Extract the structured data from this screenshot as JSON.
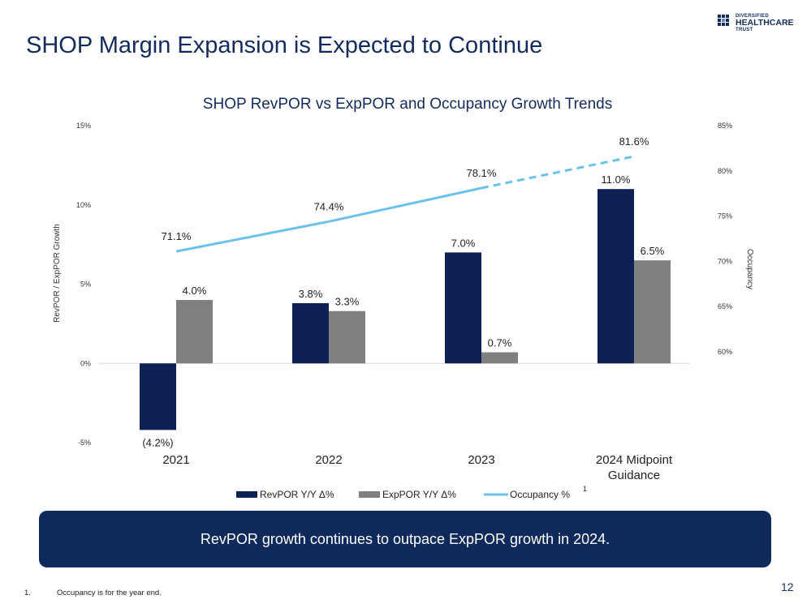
{
  "slide": {
    "title": "SHOP Margin Expansion is Expected to Continue",
    "page_number": "12",
    "callout": "RevPOR growth continues to outpace ExpPOR growth in 2024.",
    "footnote_number": "1.",
    "footnote_text": "Occupancy is for the year end."
  },
  "logo": {
    "line1": "DIVERSIFIED",
    "line2": "HEALTHCARE",
    "line3": "TRUST"
  },
  "colors": {
    "navy": "#0e2154",
    "gray": "#808080",
    "light_blue": "#6ec1ea",
    "title": "#132b5e"
  },
  "chart_data": {
    "type": "bar",
    "title": "SHOP RevPOR vs ExpPOR and Occupancy Growth Trends",
    "categories": [
      [
        "2021"
      ],
      [
        "2022"
      ],
      [
        "2023"
      ],
      [
        "2024 Midpoint",
        "Guidance"
      ]
    ],
    "series": [
      {
        "name": "RevPOR Y/Y Δ%",
        "type": "bar",
        "axis": "left",
        "values": [
          -4.2,
          3.8,
          7.0,
          11.0
        ],
        "labels": [
          "(4.2%)",
          "3.8%",
          "7.0%",
          "11.0%"
        ]
      },
      {
        "name": "ExpPOR Y/Y Δ%",
        "type": "bar",
        "axis": "left",
        "values": [
          4.0,
          3.3,
          0.7,
          6.5
        ],
        "labels": [
          "4.0%",
          "3.3%",
          "0.7%",
          "6.5%"
        ]
      },
      {
        "name": "Occupancy %",
        "type": "line",
        "axis": "right",
        "values": [
          71.1,
          74.4,
          78.1,
          81.6
        ],
        "labels": [
          "71.1%",
          "74.4%",
          "78.1%",
          "81.6%"
        ],
        "dashed_from_index": 2
      }
    ],
    "legend_superscript": "1",
    "ylabel": "RevPOR / ExpPOR Growth",
    "ylim": [
      -5,
      15
    ],
    "y_ticks": [
      15,
      10,
      5,
      0,
      -5
    ],
    "y_tick_labels": [
      "15%",
      "10%",
      "5%",
      "0%",
      "-5%"
    ],
    "y2label": "Occupancy",
    "y2lim": [
      60,
      85
    ],
    "y2_ticks": [
      85,
      80,
      75,
      70,
      65,
      60
    ],
    "y2_tick_labels": [
      "85%",
      "80%",
      "75%",
      "70%",
      "65%",
      "60%"
    ],
    "legend_position": "bottom",
    "grid": false
  }
}
